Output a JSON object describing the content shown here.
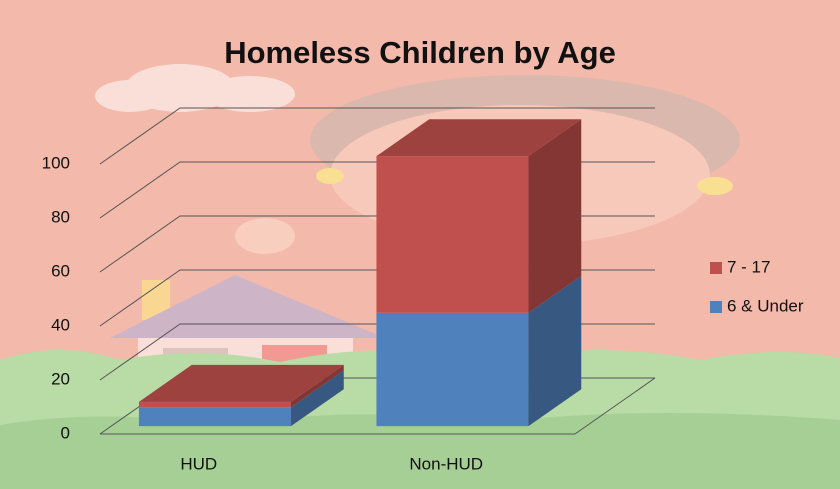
{
  "chart_data": {
    "type": "bar3d_stacked",
    "title": "Homeless Children by Age",
    "categories": [
      "HUD",
      "Non-HUD"
    ],
    "series": [
      {
        "name": "6 & Under",
        "color": "#4f81bd",
        "values": [
          7,
          42
        ]
      },
      {
        "name": "7 - 17",
        "color": "#c0504d",
        "values": [
          2,
          58
        ]
      }
    ],
    "ylim": [
      0,
      100
    ],
    "yticks": [
      0,
      20,
      40,
      60,
      80,
      100
    ],
    "grid": true,
    "legend": "right"
  }
}
